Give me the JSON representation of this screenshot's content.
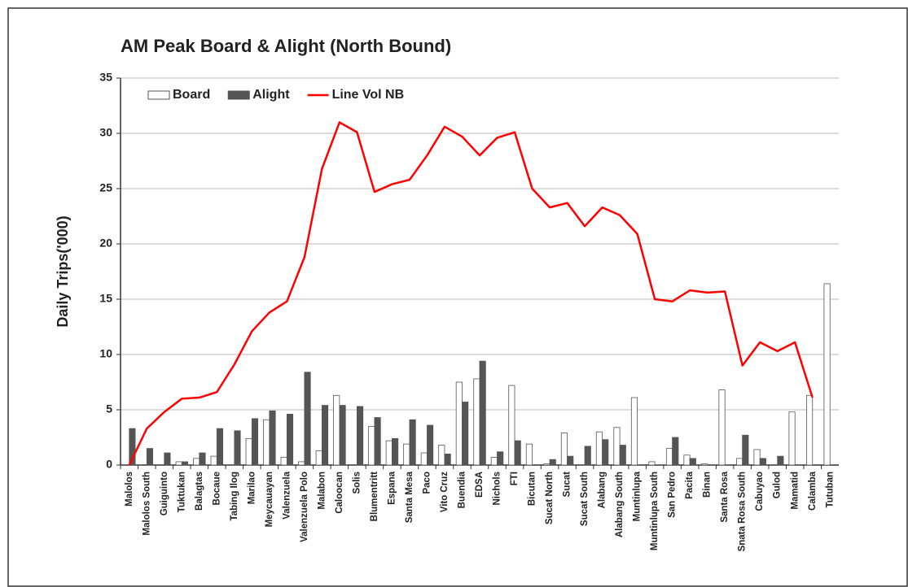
{
  "chart_data": {
    "type": "bar",
    "title": "AM Peak Board & Alight (North Bound)",
    "y_label": "Daily Trips('000)",
    "categories": [
      "Malolos",
      "Malolos South",
      "Guiguinto",
      "Tuktukan",
      "Balagtas",
      "Bocaue",
      "Tabing Ilog",
      "Marilao",
      "Meycauayan",
      "Valenzuela",
      "Valenzuela Polo",
      "Malabon",
      "Caloocan",
      "Solis",
      "Blumentritt",
      "Espana",
      "Santa Mesa",
      "Paco",
      "Vito Cruz",
      "Buendia",
      "EDSA",
      "Nichols",
      "FTI",
      "Bicutan",
      "Sucat North",
      "Sucat",
      "Sucat South",
      "Alabang",
      "Alabang South",
      "Muntinlupa",
      "Muntinlupa South",
      "San Pedro",
      "Pacita",
      "Binan",
      "Santa Rosa",
      "Snata Rosa South",
      "Cabuyao",
      "Gulod",
      "Mamatid",
      "Calamba",
      "Tutuban"
    ],
    "series": [
      {
        "name": "Board",
        "type": "bar",
        "color": "#ffffff",
        "values": [
          0,
          0,
          0,
          0.3,
          0.6,
          0.8,
          0,
          2.4,
          4.1,
          0.7,
          0.3,
          1.3,
          6.3,
          0,
          3.5,
          2.2,
          1.9,
          1.1,
          1.8,
          7.5,
          7.8,
          0.7,
          7.2,
          1.9,
          0.1,
          2.9,
          0,
          3.0,
          3.4,
          6.1,
          0.3,
          1.5,
          0.9,
          0.1,
          6.8,
          0.6,
          1.4,
          0,
          4.8,
          6.3,
          16.4
        ]
      },
      {
        "name": "Alight",
        "type": "bar",
        "color": "#555555",
        "values": [
          3.3,
          1.5,
          1.1,
          0.3,
          1.1,
          3.3,
          3.1,
          4.2,
          4.9,
          4.6,
          8.4,
          5.4,
          5.4,
          5.3,
          4.3,
          2.4,
          4.1,
          3.6,
          1.0,
          5.7,
          9.4,
          1.2,
          2.2,
          0,
          0.5,
          0.8,
          1.7,
          2.3,
          1.8,
          0,
          0,
          2.5,
          0.6,
          0,
          0,
          2.7,
          0.6,
          0.8,
          0,
          0,
          0
        ]
      },
      {
        "name": "Line Vol NB",
        "type": "line",
        "color": "#ff0000",
        "values": [
          0,
          3.3,
          4.8,
          6.0,
          6.1,
          6.6,
          9.1,
          12.1,
          13.8,
          14.8,
          18.8,
          26.8,
          31.0,
          30.1,
          24.7,
          25.4,
          25.8,
          28.0,
          30.6,
          29.7,
          28.0,
          29.6,
          30.1,
          25.0,
          23.3,
          23.7,
          21.6,
          23.3,
          22.6,
          20.9,
          15.0,
          14.8,
          15.8,
          15.6,
          15.7,
          9.0,
          11.1,
          10.3,
          11.1,
          6.1,
          null
        ]
      }
    ],
    "ylim": [
      0,
      35
    ],
    "yticks": [
      0,
      5,
      10,
      15,
      20,
      25,
      30,
      35
    ],
    "grid": true
  }
}
